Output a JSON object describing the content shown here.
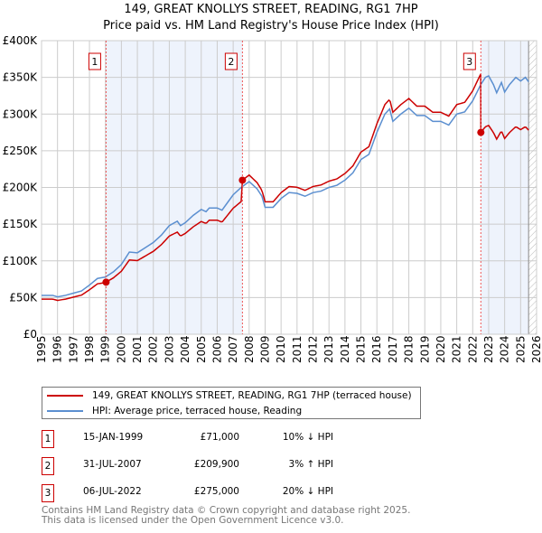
{
  "title": "149, GREAT KNOLLYS STREET, READING, RG1 7HP",
  "subtitle": "Price paid vs. HM Land Registry's House Price Index (HPI)",
  "legend": {
    "property": "149, GREAT KNOLLYS STREET, READING, RG1 7HP (terraced house)",
    "hpi": "HPI: Average price, terraced house, Reading"
  },
  "colors": {
    "property": "#cc0000",
    "hpi": "#5b8fd0",
    "shade": "#eef3fc"
  },
  "sales": [
    {
      "n": "1",
      "date": "15-JAN-1999",
      "price": "£71,000",
      "hpi": "10% ↓ HPI",
      "t": 1999.04,
      "v": 71
    },
    {
      "n": "2",
      "date": "31-JUL-2007",
      "price": "£209,900",
      "hpi": "3% ↑ HPI",
      "t": 2007.58,
      "v": 209.9
    },
    {
      "n": "3",
      "date": "06-JUL-2022",
      "price": "£275,000",
      "hpi": "20% ↓ HPI",
      "t": 2022.51,
      "v": 275
    }
  ],
  "footer": [
    "Contains HM Land Registry data © Crown copyright and database right 2025.",
    "This data is licensed under the Open Government Licence v3.0."
  ],
  "chart_data": {
    "type": "line",
    "title": "149, GREAT KNOLLYS STREET, READING, RG1 7HP",
    "xlim": [
      1995,
      2026
    ],
    "ylim": [
      0,
      400
    ],
    "yticks": [
      0,
      50,
      100,
      150,
      200,
      250,
      300,
      350,
      400
    ],
    "ytick_labels": [
      "£0",
      "£50K",
      "£100K",
      "£150K",
      "£200K",
      "£250K",
      "£300K",
      "£350K",
      "£400K"
    ],
    "xticks": [
      "1995",
      "1996",
      "1997",
      "1998",
      "1999",
      "2000",
      "2001",
      "2002",
      "2003",
      "2004",
      "2005",
      "2006",
      "2007",
      "2008",
      "2009",
      "2010",
      "2011",
      "2012",
      "2013",
      "2014",
      "2015",
      "2016",
      "2017",
      "2018",
      "2019",
      "2020",
      "2021",
      "2022",
      "2023",
      "2024",
      "2025",
      "2026"
    ],
    "data_end": 2025.5,
    "hpi": [
      [
        1995,
        53
      ],
      [
        1995.7,
        53
      ],
      [
        1996,
        51
      ],
      [
        1996.5,
        53
      ],
      [
        1997,
        56
      ],
      [
        1997.5,
        59
      ],
      [
        1998,
        67
      ],
      [
        1998.5,
        76
      ],
      [
        1999,
        78
      ],
      [
        1999.5,
        85
      ],
      [
        2000,
        95
      ],
      [
        2000.5,
        112
      ],
      [
        2001,
        111
      ],
      [
        2001.5,
        118
      ],
      [
        2002,
        125
      ],
      [
        2002.5,
        135
      ],
      [
        2003,
        148
      ],
      [
        2003.5,
        154
      ],
      [
        2003.7,
        148
      ],
      [
        2004,
        152
      ],
      [
        2004.5,
        162
      ],
      [
        2005,
        170
      ],
      [
        2005.3,
        167
      ],
      [
        2005.5,
        172
      ],
      [
        2006,
        172
      ],
      [
        2006.3,
        169
      ],
      [
        2006.6,
        178
      ],
      [
        2007,
        190
      ],
      [
        2007.5,
        200
      ],
      [
        2008,
        208
      ],
      [
        2008.5,
        198
      ],
      [
        2008.8,
        188
      ],
      [
        2009,
        173
      ],
      [
        2009.5,
        173
      ],
      [
        2010,
        185
      ],
      [
        2010.5,
        193
      ],
      [
        2011,
        192
      ],
      [
        2011.5,
        188
      ],
      [
        2012,
        193
      ],
      [
        2012.5,
        195
      ],
      [
        2013,
        200
      ],
      [
        2013.5,
        203
      ],
      [
        2014,
        210
      ],
      [
        2014.5,
        220
      ],
      [
        2015,
        238
      ],
      [
        2015.5,
        245
      ],
      [
        2016,
        275
      ],
      [
        2016.5,
        300
      ],
      [
        2016.8,
        307
      ],
      [
        2017,
        290
      ],
      [
        2017.5,
        300
      ],
      [
        2018,
        308
      ],
      [
        2018.5,
        298
      ],
      [
        2019,
        298
      ],
      [
        2019.5,
        290
      ],
      [
        2020,
        290
      ],
      [
        2020.5,
        285
      ],
      [
        2021,
        300
      ],
      [
        2021.5,
        303
      ],
      [
        2022,
        318
      ],
      [
        2022.5,
        340
      ],
      [
        2022.8,
        350
      ],
      [
        2023,
        352
      ],
      [
        2023.3,
        340
      ],
      [
        2023.5,
        329
      ],
      [
        2023.8,
        343
      ],
      [
        2024,
        330
      ],
      [
        2024.3,
        340
      ],
      [
        2024.7,
        350
      ],
      [
        2025,
        345
      ],
      [
        2025.3,
        350
      ],
      [
        2025.5,
        344
      ]
    ]
  }
}
